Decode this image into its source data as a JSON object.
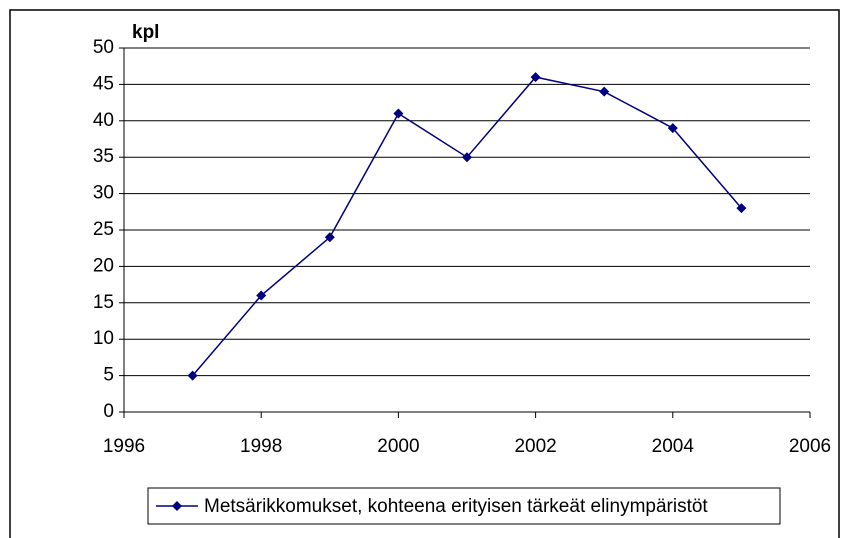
{
  "chart_data": {
    "type": "line",
    "y_label": "kpl",
    "x": [
      1997,
      1998,
      1999,
      2000,
      2001,
      2002,
      2003,
      2004,
      2005
    ],
    "series": [
      {
        "name": "Metsärikkomukset, kohteena erityisen tärkeät elinympäristöt",
        "color": "#000080",
        "values": [
          5,
          16,
          24,
          41,
          35,
          46,
          44,
          39,
          28
        ]
      }
    ],
    "xlim": [
      1996,
      2006
    ],
    "xticks": [
      1996,
      1998,
      2000,
      2002,
      2004,
      2006
    ],
    "ylim": [
      0,
      50
    ],
    "yticks": [
      0,
      5,
      10,
      15,
      20,
      25,
      30,
      35,
      40,
      45,
      50
    ],
    "grid": true,
    "legend": "bottom"
  }
}
